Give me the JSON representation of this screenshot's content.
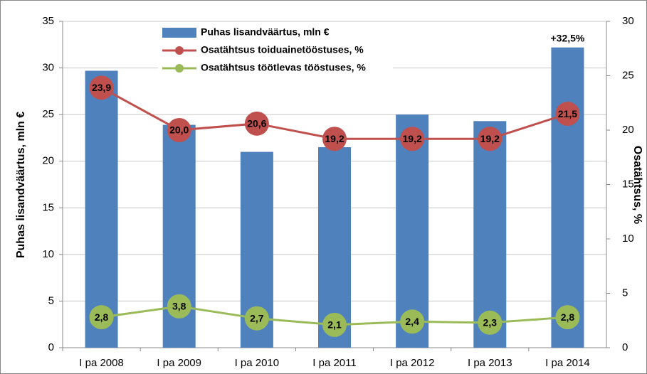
{
  "chart_data": {
    "type": "bar_line",
    "categories": [
      "I pa 2008",
      "I pa 2009",
      "I pa 2010",
      "I pa 2011",
      "I pa 2012",
      "I pa 2013",
      "I pa 2014"
    ],
    "series": [
      {
        "name": "Puhas lisandväärtus, mln €",
        "type": "bar",
        "axis": "y",
        "color": "#4f81bd",
        "values": [
          29.7,
          23.9,
          21.0,
          21.5,
          25.0,
          24.3,
          32.2
        ]
      },
      {
        "name": "Osatähtsus toiduainetööstuses, %",
        "type": "line",
        "axis": "y2",
        "color": "#c0504d",
        "values": [
          23.9,
          20.0,
          20.6,
          19.2,
          19.2,
          19.2,
          21.5
        ],
        "value_labels": [
          "23,9",
          "20,0",
          "20,6",
          "19,2",
          "19,2",
          "19,2",
          "21,5"
        ]
      },
      {
        "name": "Osatähtsus töötlevas tööstuses, %",
        "type": "line",
        "axis": "y2",
        "color": "#9bbb59",
        "values": [
          2.8,
          3.8,
          2.7,
          2.1,
          2.4,
          2.3,
          2.8
        ],
        "value_labels": [
          "2,8",
          "3,8",
          "2,7",
          "2,1",
          "2,4",
          "2,3",
          "2,8"
        ]
      }
    ],
    "annotations": [
      "+32,5%"
    ],
    "y_label": "Puhas lisandväärtus, mln €",
    "y2_label": "Osatähtsus, %",
    "ylim": [
      0,
      35
    ],
    "yticks": [
      0,
      5,
      10,
      15,
      20,
      25,
      30,
      35
    ],
    "y2lim": [
      0,
      30
    ],
    "y2ticks": [
      0,
      5,
      10,
      15,
      20,
      25,
      30
    ],
    "grid": true,
    "legend": "top-left"
  }
}
